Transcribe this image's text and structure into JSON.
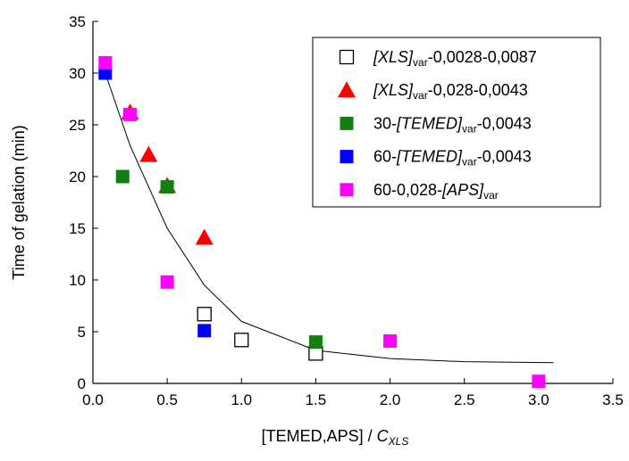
{
  "chart_data": {
    "type": "scatter",
    "xlabel": [
      "[TEMED,APS] / ",
      "C",
      "XLS"
    ],
    "xlabel_style": [
      "",
      "i",
      "sub i"
    ],
    "ylabel": "Time of gelation (min)",
    "xlim": [
      0,
      3.5
    ],
    "xticks": [
      {
        "value": 0,
        "label": "0.0"
      },
      {
        "value": 0.5,
        "label": "0.5"
      },
      {
        "value": 1,
        "label": "1.0"
      },
      {
        "value": 1.5,
        "label": "1.5"
      },
      {
        "value": 2,
        "label": "2.0"
      },
      {
        "value": 2.5,
        "label": "2.5"
      },
      {
        "value": 3,
        "label": "3.0"
      },
      {
        "value": 3.5,
        "label": "3.5"
      }
    ],
    "ylim": [
      0,
      35
    ],
    "yticks": [
      0,
      5,
      10,
      15,
      20,
      25,
      30,
      35
    ],
    "legend": "top-right",
    "series": [
      {
        "name": [
          "[XLS]",
          "var",
          "-0,0028-0,0087"
        ],
        "name_style": [
          "i",
          "sub",
          ""
        ],
        "marker": "square-open",
        "color": "#000000",
        "x": [
          0.75,
          1.0,
          1.5
        ],
        "values": [
          6.7,
          4.2,
          2.9
        ]
      },
      {
        "name": [
          "[XLS]",
          "var",
          "-0,028-0,0043"
        ],
        "name_style": [
          "i",
          "sub",
          ""
        ],
        "marker": "triangle",
        "color": "#ff0000",
        "x": [
          0.25,
          0.375,
          0.5,
          0.75
        ],
        "values": [
          26.2,
          22.1,
          19.1,
          14.1
        ]
      },
      {
        "name": [
          "30-",
          "[TEMED]",
          "var",
          "-0,0043"
        ],
        "name_style": [
          "",
          "i",
          "sub",
          ""
        ],
        "marker": "square",
        "color": "#118011",
        "x": [
          0.2,
          0.5,
          1.5
        ],
        "values": [
          20,
          19,
          4
        ]
      },
      {
        "name": [
          "60-",
          "[TEMED]",
          "var",
          "-0,0043"
        ],
        "name_style": [
          "",
          "i",
          "sub",
          ""
        ],
        "marker": "square",
        "color": "#0000ff",
        "x": [
          0.083,
          0.75
        ],
        "values": [
          30,
          5.1
        ]
      },
      {
        "name": [
          "60-0,028-",
          "[APS]",
          "var"
        ],
        "name_style": [
          "",
          "i",
          "sub"
        ],
        "marker": "square",
        "color": "#ff00ff",
        "x": [
          0.083,
          0.25,
          0.5,
          2.0,
          3.0
        ],
        "values": [
          31,
          26,
          9.8,
          4.1,
          0.2
        ]
      }
    ],
    "fit": {
      "color": "#000000",
      "x": [
        0.083,
        0.25,
        0.5,
        0.75,
        1.0,
        1.5,
        2.0,
        2.5,
        3.1
      ],
      "values": [
        30,
        23,
        15,
        9.5,
        6,
        3.2,
        2.4,
        2.1,
        2.0
      ]
    }
  }
}
